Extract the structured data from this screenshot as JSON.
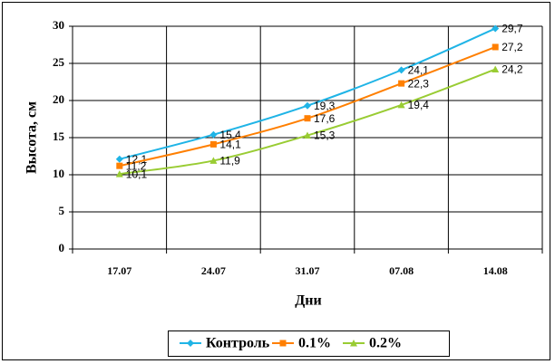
{
  "chart_data": {
    "type": "line",
    "categories": [
      "17.07",
      "24.07",
      "31.07",
      "07.08",
      "14.08"
    ],
    "series": [
      {
        "name": "Контроль",
        "color": "#1fb4e6",
        "marker": "diamond",
        "values": [
          12.1,
          15.4,
          19.3,
          24.1,
          29.7
        ],
        "value_labels": [
          "12,1",
          "15,4",
          "19,3",
          "24,1",
          "29,7"
        ]
      },
      {
        "name": "0.1%",
        "color": "#ff7f00",
        "marker": "square",
        "values": [
          11.2,
          14.1,
          17.6,
          22.3,
          27.2
        ],
        "value_labels": [
          "11,2",
          "14,1",
          "17,6",
          "22,3",
          "27,2"
        ]
      },
      {
        "name": "0.2%",
        "color": "#99cc33",
        "marker": "triangle",
        "values": [
          10.1,
          11.9,
          15.3,
          19.4,
          24.2
        ],
        "value_labels": [
          "10,1",
          "11,9",
          "15,3",
          "19,4",
          "24,2"
        ]
      }
    ],
    "ylim": [
      0,
      30
    ],
    "yticks": [
      0,
      5,
      10,
      15,
      20,
      25,
      30
    ],
    "ylabel": "Высота, см",
    "xlabel": "Дни",
    "grid": true,
    "smooth": true,
    "legend": "bottom"
  }
}
